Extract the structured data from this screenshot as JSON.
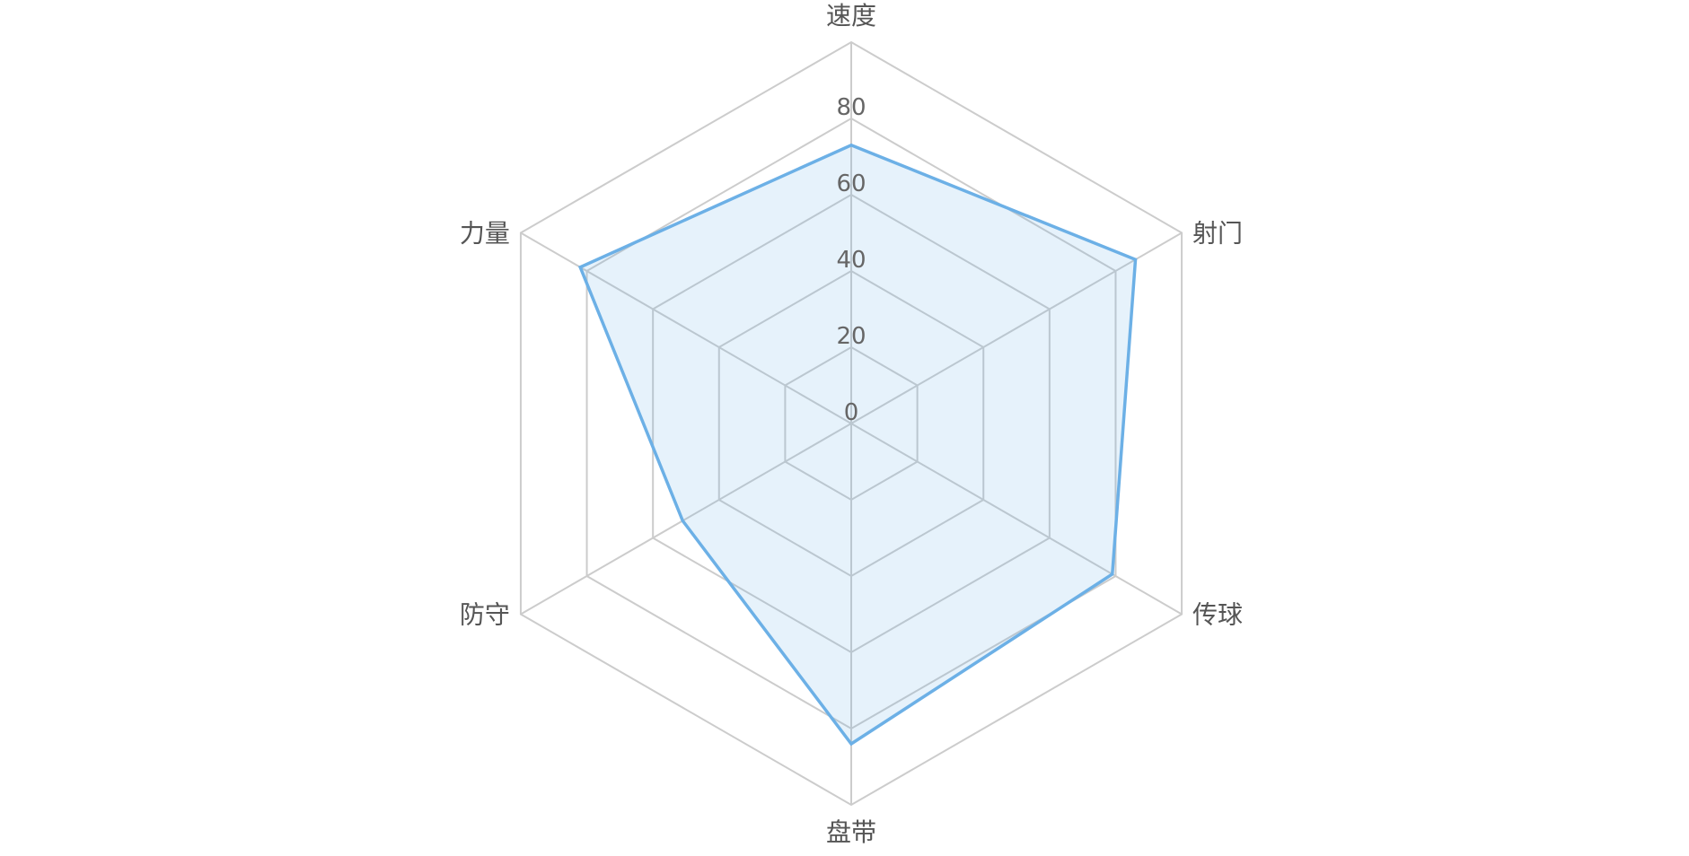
{
  "chart_data": {
    "type": "radar",
    "indicators": [
      "速度",
      "射门",
      "传球",
      "盘带",
      "防守",
      "力量"
    ],
    "max": 100,
    "ticks": [
      0,
      20,
      40,
      60,
      80
    ],
    "series": [
      {
        "values": [
          73,
          86,
          79,
          84,
          51,
          82
        ]
      }
    ],
    "colors": {
      "series": "#6cb0e6",
      "area": "rgba(108,176,230,0.17)",
      "grid": "#cccccc"
    }
  }
}
